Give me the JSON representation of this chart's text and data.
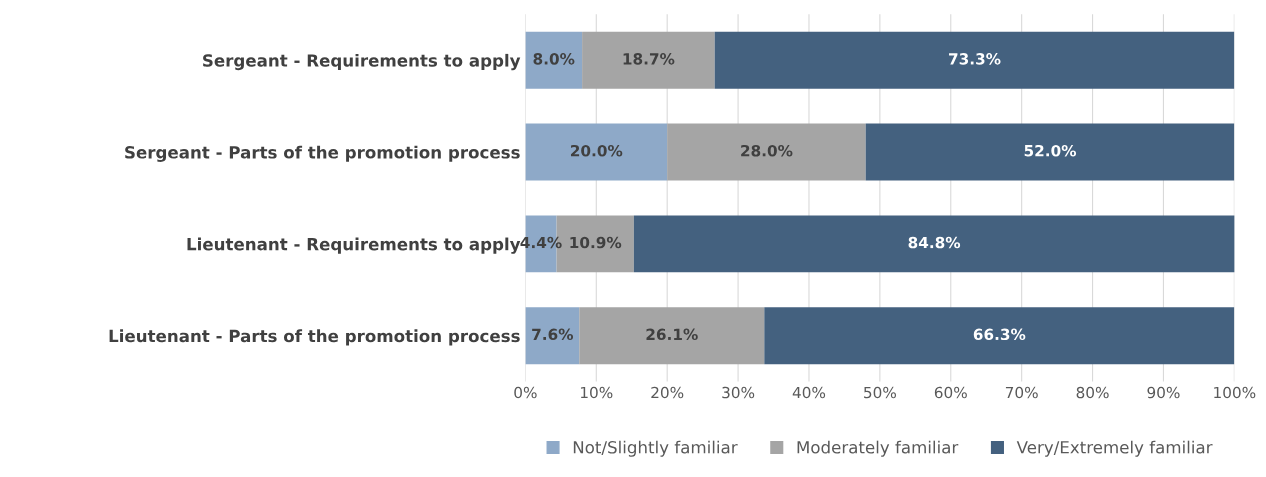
{
  "chart_data": {
    "type": "bar",
    "orientation": "horizontal",
    "stacked": true,
    "categories": [
      "Sergeant - Requirements to apply",
      "Sergeant - Parts of the promotion process",
      "Lieutenant - Requirements to apply",
      "Lieutenant - Parts of the promotion process"
    ],
    "series": [
      {
        "name": "Not/Slightly familiar",
        "color": "#8ea9c8",
        "values": [
          8.0,
          20.0,
          4.4,
          7.6
        ],
        "value_labels": [
          "8.0%",
          "20.0%",
          "4.4%",
          "7.6%"
        ]
      },
      {
        "name": "Moderately familiar",
        "color": "#a5a5a5",
        "values": [
          18.7,
          28.0,
          10.9,
          26.1
        ],
        "value_labels": [
          "18.7%",
          "28.0%",
          "10.9%",
          "26.1%"
        ]
      },
      {
        "name": "Very/Extremely familiar",
        "color": "#44617f",
        "values": [
          73.3,
          52.0,
          84.8,
          66.3
        ],
        "value_labels": [
          "73.3%",
          "52.0%",
          "84.8%",
          "66.3%"
        ]
      }
    ],
    "xlim": [
      0,
      100
    ],
    "xticks": [
      {
        "value": 0,
        "label": "0%"
      },
      {
        "value": 10,
        "label": "10%"
      },
      {
        "value": 20,
        "label": "20%"
      },
      {
        "value": 30,
        "label": "30%"
      },
      {
        "value": 40,
        "label": "40%"
      },
      {
        "value": 50,
        "label": "50%"
      },
      {
        "value": 60,
        "label": "60%"
      },
      {
        "value": 70,
        "label": "70%"
      },
      {
        "value": 80,
        "label": "80%"
      },
      {
        "value": 90,
        "label": "90%"
      },
      {
        "value": 100,
        "label": "100%"
      }
    ],
    "grid": "x",
    "legend": "bottom"
  }
}
